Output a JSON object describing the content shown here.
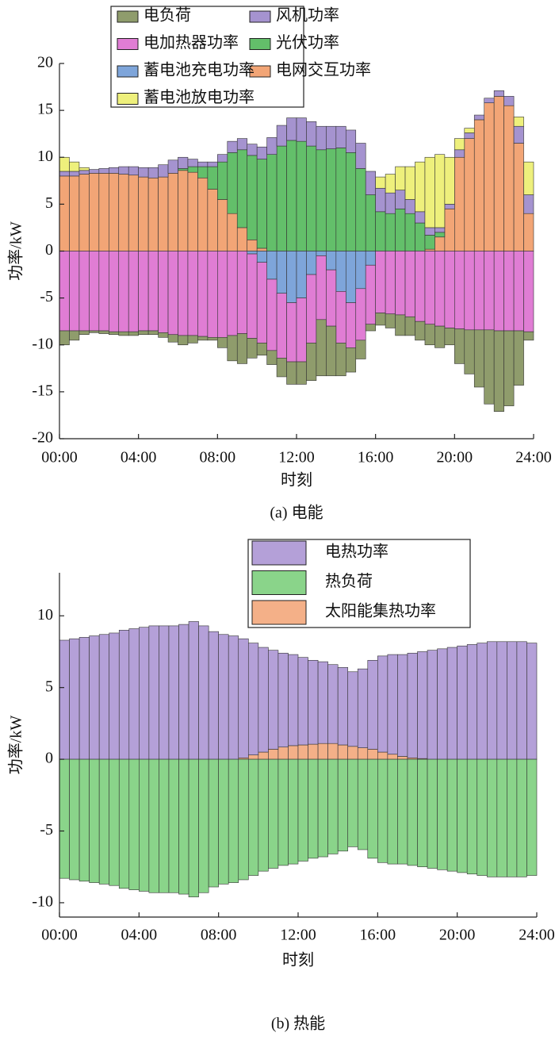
{
  "chart_data": [
    {
      "type": "bar",
      "stacked": true,
      "caption": "(a) 电能",
      "xlabel": "时刻",
      "ylabel": "功率/kW",
      "legend": "upper left",
      "x": [
        0.25,
        0.75,
        1.25,
        1.75,
        2.25,
        2.75,
        3.25,
        3.75,
        4.25,
        4.75,
        5.25,
        5.75,
        6.25,
        6.75,
        7.25,
        7.75,
        8.25,
        8.75,
        9.25,
        9.75,
        10.25,
        10.75,
        11.25,
        11.75,
        12.25,
        12.75,
        13.25,
        13.75,
        14.25,
        14.75,
        15.25,
        15.75,
        16.25,
        16.75,
        17.25,
        17.75,
        18.25,
        18.75,
        19.25,
        19.75,
        20.25,
        20.75,
        21.25,
        21.75,
        22.25,
        22.75,
        23.25,
        23.75
      ],
      "xlim": [
        0,
        24
      ],
      "xticks": [
        {
          "value": 0,
          "label": "00:00"
        },
        {
          "value": 4,
          "label": "04:00"
        },
        {
          "value": 8,
          "label": "08:00"
        },
        {
          "value": 12,
          "label": "12:00"
        },
        {
          "value": 16,
          "label": "16:00"
        },
        {
          "value": 20,
          "label": "20:00"
        },
        {
          "value": 24,
          "label": "24:00"
        }
      ],
      "ylim": [
        -20,
        20
      ],
      "yticks": [
        -20,
        -15,
        -10,
        -5,
        0,
        5,
        10,
        15,
        20
      ],
      "series": [
        {
          "name": "电网交互功率",
          "color": "#f2a576",
          "values": [
            8,
            8,
            8.2,
            8.3,
            8.3,
            8.3,
            8.2,
            8.1,
            7.9,
            7.8,
            7.9,
            8.3,
            8.6,
            8.4,
            7.8,
            6.6,
            5.5,
            4.0,
            2.5,
            1.2,
            0.3,
            0,
            0,
            0,
            0,
            0,
            0,
            0,
            0,
            0,
            0,
            0,
            0,
            0,
            0,
            0,
            0,
            0.2,
            1.5,
            4.5,
            10.0,
            12.0,
            14.0,
            15.8,
            16.5,
            15.5,
            11.5,
            4.0
          ]
        },
        {
          "name": "光伏功率",
          "color": "#63bf6a",
          "values": [
            0,
            0,
            0,
            0,
            0,
            0,
            0,
            0,
            0,
            0,
            0,
            0,
            0.2,
            0.6,
            1.2,
            2.4,
            4.0,
            6.5,
            8.3,
            9.0,
            9.5,
            10.3,
            11.2,
            11.8,
            11.7,
            11.2,
            10.8,
            10.9,
            11.0,
            10.5,
            8.8,
            6.0,
            4.2,
            4.0,
            4.5,
            4.0,
            3.0,
            1.5,
            0.5,
            0,
            0,
            0,
            0,
            0,
            0,
            0,
            0,
            0
          ]
        },
        {
          "name": "风机功率",
          "color": "#a593cf",
          "values": [
            0.5,
            0.5,
            0.4,
            0.4,
            0.5,
            0.6,
            0.8,
            0.9,
            1.0,
            1.1,
            1.3,
            1.4,
            1.2,
            0.8,
            0.5,
            0.5,
            0.8,
            1.2,
            1.2,
            1.2,
            1.3,
            1.8,
            2.2,
            2.4,
            2.5,
            2.6,
            2.5,
            2.4,
            2.3,
            2.4,
            2.7,
            2.5,
            2.5,
            2.2,
            2.0,
            1.5,
            1.2,
            0.8,
            0.5,
            0.5,
            0.8,
            0.6,
            0.5,
            0.5,
            0.6,
            1.0,
            1.8,
            2.0
          ]
        },
        {
          "name": "蓄电池放电功率",
          "color": "#eef07c",
          "values": [
            1.5,
            1,
            0.3,
            0,
            0,
            0,
            0,
            0,
            0,
            0,
            0,
            0,
            0,
            0,
            0,
            0,
            0,
            0,
            0,
            0,
            0,
            0,
            0,
            0,
            0,
            0,
            0,
            0,
            0,
            0,
            0,
            0,
            1.2,
            2.0,
            2.5,
            3.5,
            5.3,
            7.5,
            7.8,
            5.0,
            1.2,
            0.5,
            0,
            0,
            0,
            0,
            1.0,
            3.5
          ]
        },
        {
          "name": "蓄电池充电功率",
          "color": "#7ea5da",
          "values": [
            0,
            0,
            0,
            0,
            0,
            0,
            0,
            0,
            0,
            0,
            0,
            0,
            0,
            0,
            0,
            0,
            0,
            0,
            0,
            -0.3,
            -1.2,
            -3.0,
            -4.5,
            -5.5,
            -5.0,
            -2.5,
            -0.5,
            -2.0,
            -4.3,
            -5.5,
            -4.0,
            -1.5,
            0,
            0,
            0,
            0,
            0,
            0,
            0,
            0,
            0,
            0,
            0,
            0,
            0,
            0,
            0,
            0
          ]
        },
        {
          "name": "电加热器功率",
          "color": "#e07dd4",
          "values": [
            -8.5,
            -8.5,
            -8.5,
            -8.5,
            -8.5,
            -8.6,
            -8.6,
            -8.6,
            -8.5,
            -8.5,
            -8.7,
            -8.9,
            -9.0,
            -9.0,
            -9.1,
            -9.2,
            -9.2,
            -9.0,
            -8.8,
            -9.0,
            -8.6,
            -7.6,
            -6.9,
            -6.3,
            -6.8,
            -7.3,
            -6.8,
            -6.0,
            -5.5,
            -4.8,
            -5.5,
            -6.3,
            -6.6,
            -6.7,
            -6.8,
            -7.0,
            -7.5,
            -7.8,
            -8.0,
            -8.2,
            -8.3,
            -8.4,
            -8.4,
            -8.4,
            -8.5,
            -8.5,
            -8.5,
            -8.6
          ]
        },
        {
          "name": "电负荷",
          "color": "#8f9c6c",
          "values": [
            -1.5,
            -1.0,
            -0.4,
            -0.2,
            -0.3,
            -0.3,
            -0.4,
            -0.4,
            -0.4,
            -0.4,
            -0.5,
            -0.8,
            -1.0,
            -0.8,
            -0.4,
            -0.3,
            -1.1,
            -2.7,
            -3.2,
            -2.1,
            -1.3,
            -1.5,
            -2.0,
            -2.4,
            -2.4,
            -4.0,
            -6.0,
            -5.3,
            -3.5,
            -2.6,
            -2.0,
            -0.7,
            -1.3,
            -1.5,
            -2.2,
            -2.0,
            -2.0,
            -2.2,
            -2.3,
            -1.8,
            -3.7,
            -4.7,
            -6.1,
            -7.9,
            -8.6,
            -8.0,
            -5.8,
            -0.9
          ]
        }
      ]
    },
    {
      "type": "bar",
      "stacked": true,
      "caption": "(b) 热能",
      "xlabel": "时刻",
      "ylabel": "功率/kW",
      "legend": "upper right",
      "x": [
        0.25,
        0.75,
        1.25,
        1.75,
        2.25,
        2.75,
        3.25,
        3.75,
        4.25,
        4.75,
        5.25,
        5.75,
        6.25,
        6.75,
        7.25,
        7.75,
        8.25,
        8.75,
        9.25,
        9.75,
        10.25,
        10.75,
        11.25,
        11.75,
        12.25,
        12.75,
        13.25,
        13.75,
        14.25,
        14.75,
        15.25,
        15.75,
        16.25,
        16.75,
        17.25,
        17.75,
        18.25,
        18.75,
        19.25,
        19.75,
        20.25,
        20.75,
        21.25,
        21.75,
        22.25,
        22.75,
        23.25,
        23.75
      ],
      "xlim": [
        0,
        24
      ],
      "xticks": [
        {
          "value": 0,
          "label": "00:00"
        },
        {
          "value": 4,
          "label": "04:00"
        },
        {
          "value": 8,
          "label": "08:00"
        },
        {
          "value": 12,
          "label": "12:00"
        },
        {
          "value": 16,
          "label": "16:00"
        },
        {
          "value": 20,
          "label": "20:00"
        },
        {
          "value": 24,
          "label": "24:00"
        }
      ],
      "ylim": [
        -11,
        13
      ],
      "yticks": [
        -10,
        -5,
        0,
        5,
        10
      ],
      "series": [
        {
          "name": "太阳能集热功率",
          "color": "#f4b088",
          "values": [
            0,
            0,
            0,
            0,
            0,
            0,
            0,
            0,
            0,
            0,
            0,
            0,
            0,
            0,
            0,
            0,
            0,
            0,
            0.1,
            0.3,
            0.5,
            0.7,
            0.85,
            0.95,
            1.0,
            1.05,
            1.1,
            1.1,
            1.0,
            0.9,
            0.8,
            0.7,
            0.5,
            0.35,
            0.2,
            0.1,
            0.05,
            0,
            0,
            0,
            0,
            0,
            0,
            0,
            0,
            0,
            0,
            0
          ]
        },
        {
          "name": "电热功率",
          "color": "#b4a0d8",
          "values": [
            8.3,
            8.4,
            8.5,
            8.6,
            8.7,
            8.8,
            9.0,
            9.1,
            9.2,
            9.3,
            9.3,
            9.3,
            9.4,
            9.6,
            9.3,
            8.9,
            8.7,
            8.6,
            8.3,
            7.8,
            7.3,
            6.9,
            6.55,
            6.35,
            6.1,
            5.85,
            5.7,
            5.5,
            5.4,
            5.2,
            5.5,
            6.2,
            6.7,
            6.95,
            7.1,
            7.3,
            7.45,
            7.6,
            7.7,
            7.8,
            7.9,
            8.0,
            8.1,
            8.2,
            8.2,
            8.2,
            8.2,
            8.1
          ]
        },
        {
          "name": "热负荷",
          "color": "#8ad48a",
          "values": [
            -8.3,
            -8.4,
            -8.5,
            -8.6,
            -8.7,
            -8.8,
            -9.0,
            -9.1,
            -9.2,
            -9.3,
            -9.3,
            -9.3,
            -9.4,
            -9.6,
            -9.3,
            -8.9,
            -8.7,
            -8.6,
            -8.4,
            -8.1,
            -7.8,
            -7.6,
            -7.4,
            -7.3,
            -7.1,
            -6.9,
            -6.8,
            -6.6,
            -6.4,
            -6.1,
            -6.3,
            -6.9,
            -7.2,
            -7.3,
            -7.3,
            -7.4,
            -7.5,
            -7.6,
            -7.7,
            -7.8,
            -7.9,
            -8.0,
            -8.1,
            -8.2,
            -8.2,
            -8.2,
            -8.2,
            -8.1
          ]
        }
      ]
    }
  ]
}
